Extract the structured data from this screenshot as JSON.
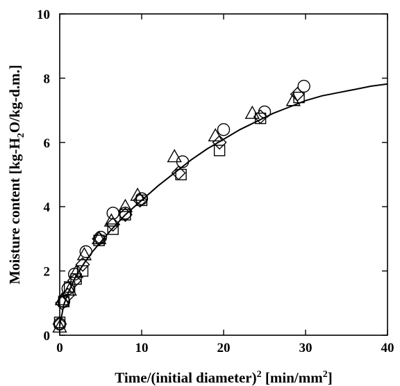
{
  "chart_data": {
    "type": "scatter",
    "xlabel": {
      "pre": "Time/(initial diameter)",
      "sup1": "2",
      "mid": " [min/mm",
      "sup2": "2",
      "post": "]"
    },
    "ylabel": {
      "pre": "Moisture content [kg-H",
      "sub": "2",
      "post": "O/kg-d.m.]"
    },
    "xlim": [
      0,
      40
    ],
    "ylim": [
      0,
      10
    ],
    "xticks": [
      "0",
      "10",
      "20",
      "30",
      "40"
    ],
    "yticks": [
      "0",
      "2",
      "4",
      "6",
      "8",
      "10"
    ],
    "grid": false,
    "series": [
      {
        "marker": "circle",
        "points": [
          [
            0,
            0.35
          ],
          [
            0.5,
            1.05
          ],
          [
            1.0,
            1.45
          ],
          [
            1.8,
            1.9
          ],
          [
            3.2,
            2.6
          ],
          [
            5.0,
            3.05
          ],
          [
            6.5,
            3.8
          ],
          [
            8.0,
            3.8
          ],
          [
            10.0,
            4.25
          ],
          [
            15.0,
            5.4
          ],
          [
            20.0,
            6.4
          ],
          [
            25.0,
            6.95
          ],
          [
            29.8,
            7.75
          ]
        ]
      },
      {
        "marker": "square",
        "points": [
          [
            0,
            0.4
          ],
          [
            0.5,
            1.05
          ],
          [
            1.2,
            1.5
          ],
          [
            2.0,
            1.75
          ],
          [
            2.8,
            2.0
          ],
          [
            4.8,
            2.95
          ],
          [
            6.5,
            3.3
          ],
          [
            8.0,
            3.75
          ],
          [
            10.0,
            4.2
          ],
          [
            14.8,
            5.0
          ],
          [
            19.5,
            5.75
          ],
          [
            24.5,
            6.75
          ],
          [
            29.2,
            7.4
          ]
        ]
      },
      {
        "marker": "diamond",
        "points": [
          [
            0,
            0.35
          ],
          [
            0.3,
            1.0
          ],
          [
            1.0,
            1.25
          ],
          [
            1.8,
            1.7
          ],
          [
            2.8,
            2.2
          ],
          [
            4.8,
            3.0
          ],
          [
            6.5,
            3.45
          ],
          [
            8.0,
            3.75
          ],
          [
            9.8,
            4.2
          ],
          [
            14.5,
            5.05
          ],
          [
            19.5,
            6.0
          ],
          [
            24.5,
            6.8
          ],
          [
            29.0,
            7.5
          ]
        ]
      },
      {
        "marker": "triangle",
        "points": [
          [
            0,
            0.25
          ],
          [
            0.3,
            1.1
          ],
          [
            1.2,
            1.4
          ],
          [
            2.0,
            1.95
          ],
          [
            3.0,
            2.5
          ],
          [
            4.8,
            3.0
          ],
          [
            6.3,
            3.55
          ],
          [
            8.0,
            4.0
          ],
          [
            9.5,
            4.35
          ],
          [
            14.0,
            5.55
          ],
          [
            19.0,
            6.2
          ],
          [
            23.5,
            6.9
          ],
          [
            28.5,
            7.3
          ]
        ]
      }
    ],
    "fit_curve": [
      [
        0,
        0.3
      ],
      [
        0.5,
        0.95
      ],
      [
        1,
        1.3
      ],
      [
        2,
        1.85
      ],
      [
        3,
        2.25
      ],
      [
        4,
        2.6
      ],
      [
        5,
        2.9
      ],
      [
        6,
        3.2
      ],
      [
        8,
        3.75
      ],
      [
        10,
        4.2
      ],
      [
        12,
        4.65
      ],
      [
        14,
        5.05
      ],
      [
        16,
        5.45
      ],
      [
        18,
        5.8
      ],
      [
        20,
        6.1
      ],
      [
        22,
        6.4
      ],
      [
        24,
        6.65
      ],
      [
        26,
        6.9
      ],
      [
        28,
        7.1
      ],
      [
        30,
        7.3
      ],
      [
        32,
        7.45
      ],
      [
        34,
        7.55
      ],
      [
        36,
        7.65
      ],
      [
        38,
        7.75
      ],
      [
        40,
        7.82
      ]
    ]
  }
}
